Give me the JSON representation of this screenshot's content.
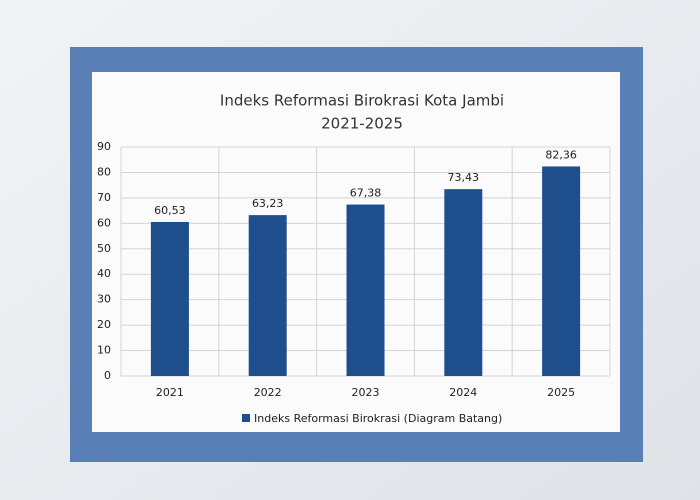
{
  "chart_data": {
    "type": "bar",
    "title": "Indeks Reformasi Birokrasi Kota Jambi",
    "subtitle": "2021-2025",
    "categories": [
      "2021",
      "2022",
      "2023",
      "2024",
      "2025"
    ],
    "series": [
      {
        "name": "Indeks Reformasi Birokrasi (Diagram Batang)",
        "color": "#1f4e8c",
        "values": [
          60.53,
          63.23,
          67.38,
          73.43,
          82.36
        ],
        "value_labels": [
          "60,53",
          "63,23",
          "67,38",
          "73,43",
          "82,36"
        ]
      }
    ],
    "ylim": [
      0,
      90
    ],
    "yticks": [
      0,
      10,
      20,
      30,
      40,
      50,
      60,
      70,
      80,
      90
    ],
    "grid": true,
    "legend": "bottom"
  }
}
